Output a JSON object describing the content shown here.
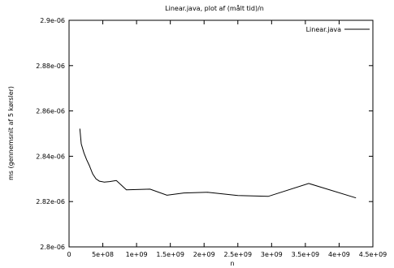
{
  "chart_data": {
    "type": "line",
    "title": "Linear.java, plot af (målt tid)/n",
    "xlabel": "n",
    "ylabel": "ms (gennemsnit af 5 kørsler)",
    "xlim": [
      0,
      4500000000
    ],
    "ylim": [
      2.8e-06,
      2.9e-06
    ],
    "x_ticks": [
      0,
      500000000,
      1000000000,
      1500000000,
      2000000000,
      2500000000,
      3000000000,
      3500000000,
      4000000000,
      4500000000
    ],
    "x_tick_labels": [
      "0",
      "5e+08",
      "1e+09",
      "1.5e+09",
      "2e+09",
      "2.5e+09",
      "3e+09",
      "3.5e+09",
      "4e+09",
      "4.5e+09"
    ],
    "y_ticks": [
      2.8e-06,
      2.82e-06,
      2.84e-06,
      2.86e-06,
      2.88e-06,
      2.9e-06
    ],
    "y_tick_labels": [
      "2.8e-06",
      "2.82e-06",
      "2.84e-06",
      "2.86e-06",
      "2.88e-06",
      "2.9e-06"
    ],
    "grid": false,
    "legend_position": "top-right",
    "series": [
      {
        "name": "Linear.java",
        "color": "#000000",
        "x": [
          160000000,
          180000000,
          220000000,
          260000000,
          300000000,
          350000000,
          400000000,
          450000000,
          520000000,
          600000000,
          700000000,
          850000000,
          1200000000,
          1450000000,
          1700000000,
          2050000000,
          2500000000,
          2950000000,
          3550000000,
          4250000000
        ],
        "y": [
          2.8522e-06,
          2.8455e-06,
          2.8415e-06,
          2.8385e-06,
          2.836e-06,
          2.8322e-06,
          2.83e-06,
          2.829e-06,
          2.8286e-06,
          2.8288e-06,
          2.8293e-06,
          2.8252e-06,
          2.8255e-06,
          2.8228e-06,
          2.8238e-06,
          2.8241e-06,
          2.8227e-06,
          2.8223e-06,
          2.828e-06,
          2.8216e-06
        ]
      }
    ]
  }
}
